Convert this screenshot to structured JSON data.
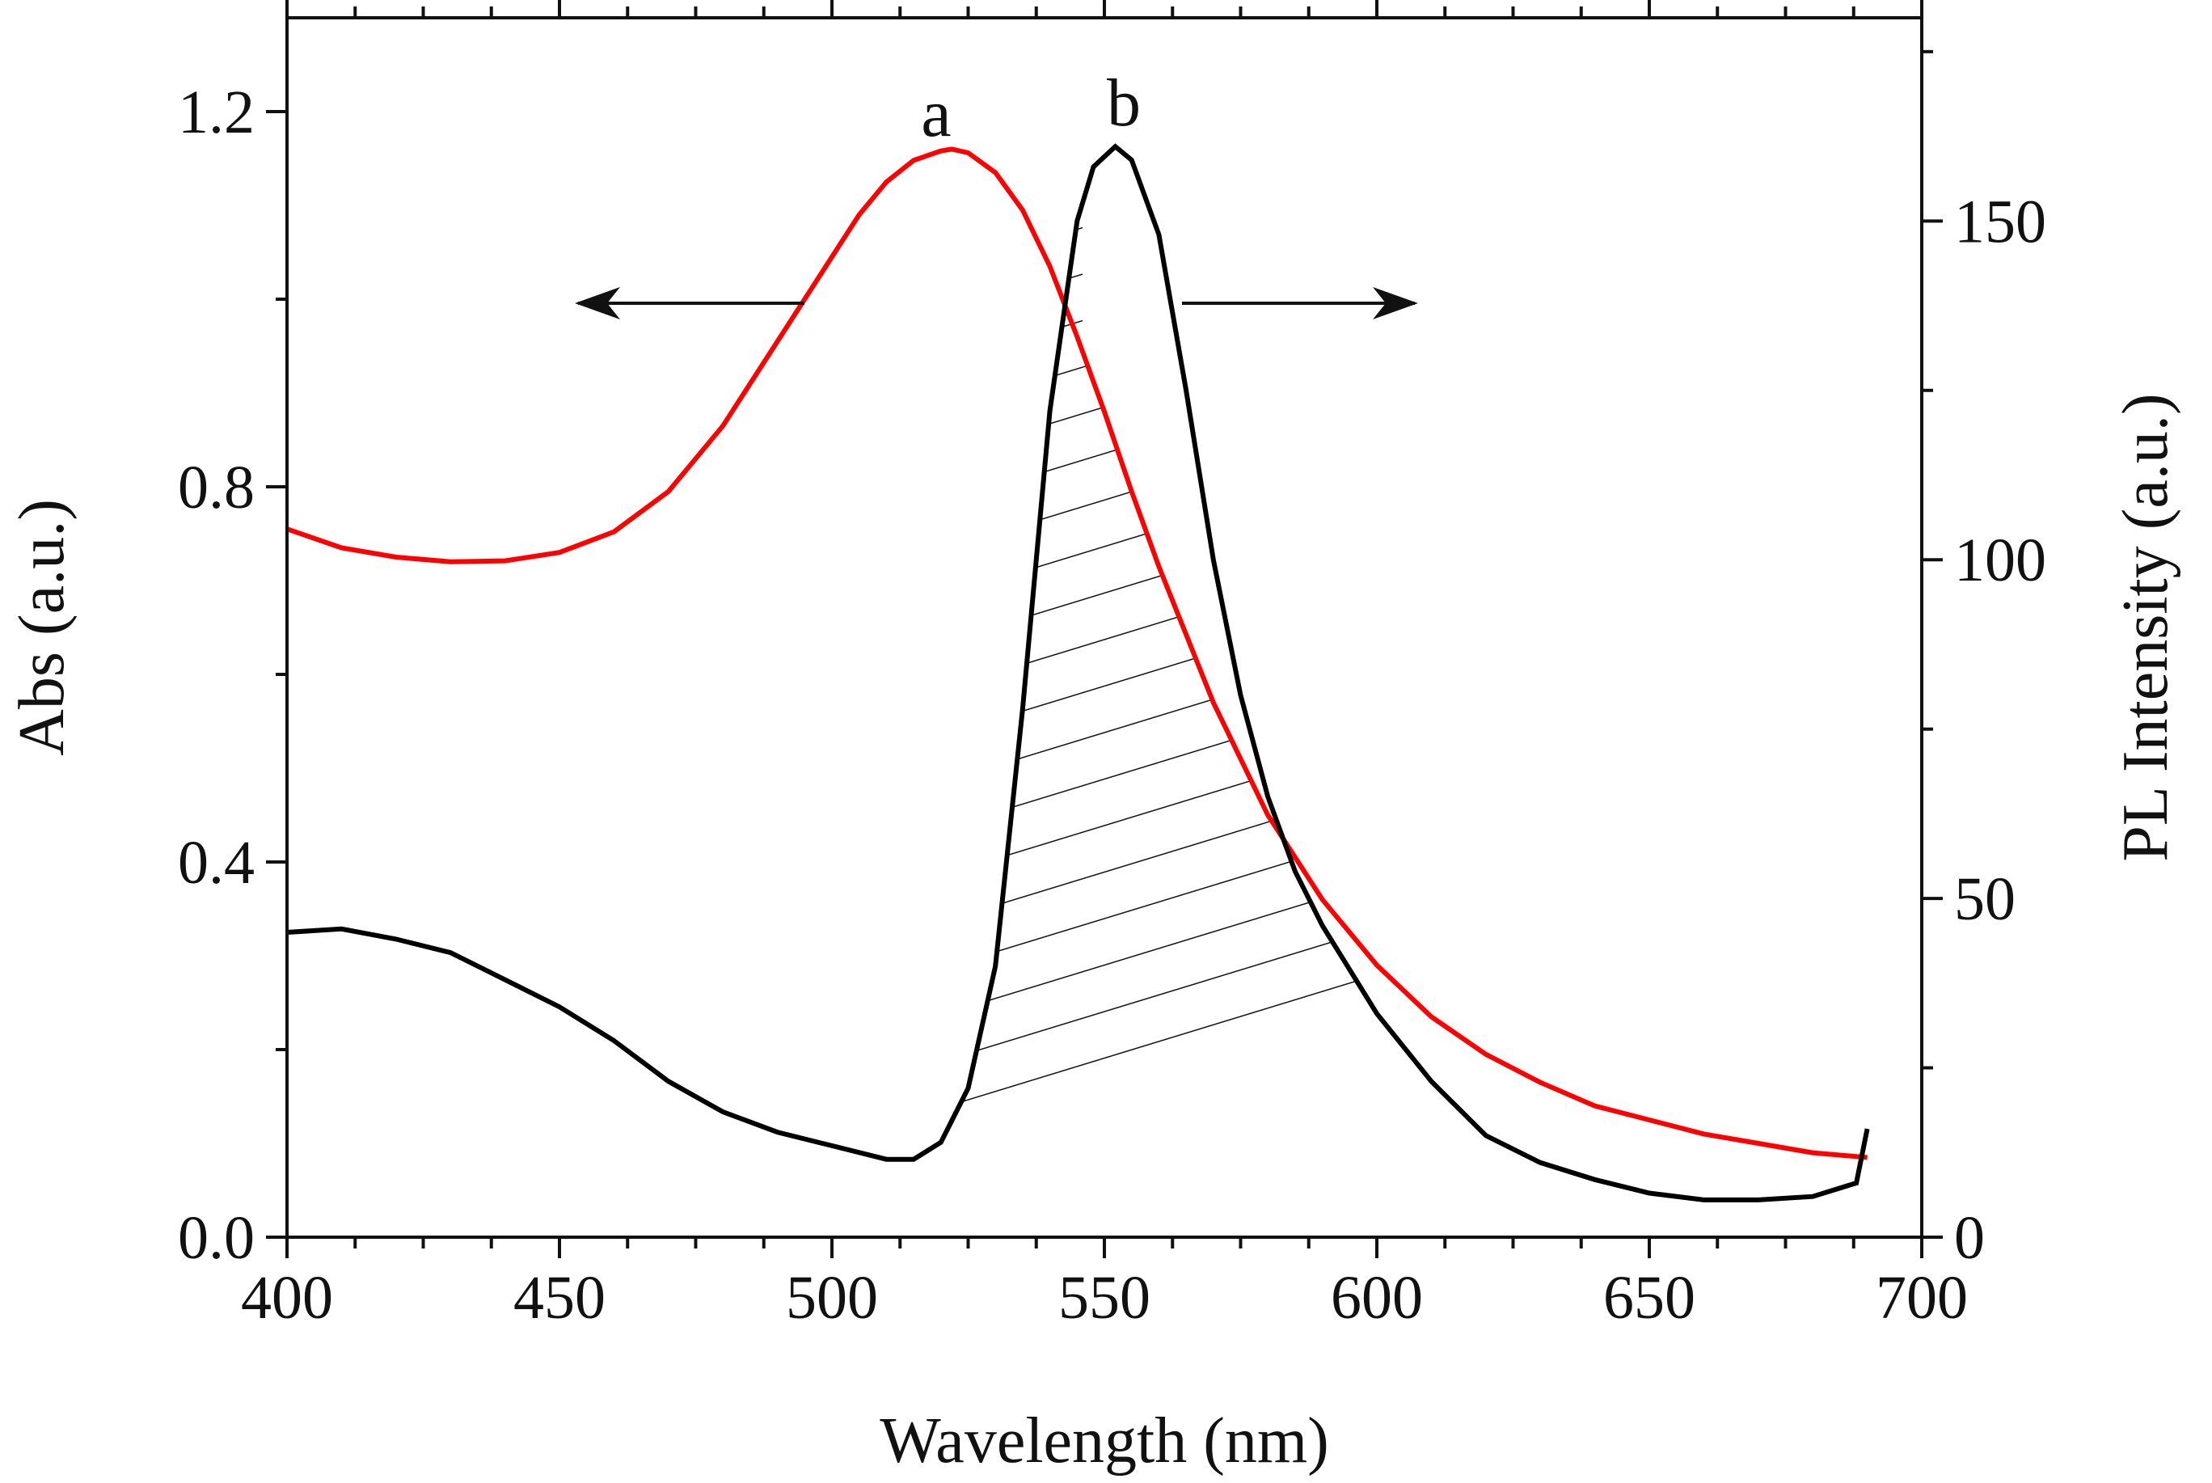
{
  "chart_data": {
    "type": "line",
    "xlabel": "Wavelength (nm)",
    "ylabel_left": "Abs (a.u.)",
    "ylabel_right": "PL Intensity (a.u.)",
    "xlim": [
      400,
      700
    ],
    "ylim_left": [
      0.0,
      1.3
    ],
    "ylim_right": [
      0,
      180
    ],
    "x_ticks": [
      "400",
      "450",
      "500",
      "550",
      "600",
      "650",
      "700"
    ],
    "y_left_ticks": [
      "0.0",
      "0.4",
      "0.8",
      "1.2"
    ],
    "y_right_ticks": [
      "0",
      "50",
      "100",
      "150"
    ],
    "grid": false,
    "legend": "none",
    "annotations": {
      "curve_a_label": "a",
      "curve_b_label": "b"
    },
    "overlap_region": "hatched",
    "series": [
      {
        "label": "a",
        "axis": "left",
        "color": "#ff0000",
        "x": [
          400,
          410,
          420,
          430,
          440,
          450,
          460,
          470,
          480,
          490,
          500,
          505,
          510,
          515,
          520,
          522,
          525,
          530,
          535,
          540,
          545,
          550,
          555,
          560,
          570,
          580,
          590,
          600,
          610,
          620,
          630,
          640,
          650,
          660,
          670,
          680,
          690
        ],
        "y": [
          0.755,
          0.735,
          0.725,
          0.72,
          0.721,
          0.73,
          0.752,
          0.795,
          0.865,
          0.955,
          1.045,
          1.09,
          1.125,
          1.148,
          1.158,
          1.16,
          1.156,
          1.135,
          1.095,
          1.035,
          0.96,
          0.88,
          0.795,
          0.715,
          0.57,
          0.45,
          0.36,
          0.29,
          0.235,
          0.195,
          0.165,
          0.14,
          0.125,
          0.11,
          0.1,
          0.09,
          0.085
        ]
      },
      {
        "label": "b",
        "axis": "right",
        "color": "#000000",
        "x": [
          400,
          410,
          420,
          430,
          440,
          450,
          460,
          470,
          480,
          490,
          500,
          510,
          515,
          520,
          525,
          530,
          535,
          540,
          545,
          548,
          552,
          555,
          560,
          565,
          570,
          575,
          580,
          585,
          590,
          600,
          610,
          620,
          630,
          640,
          650,
          660,
          670,
          680,
          688,
          690
        ],
        "y": [
          45,
          45.5,
          44,
          42,
          38,
          34,
          29,
          23,
          18.5,
          15.5,
          13.5,
          11.5,
          11.5,
          14,
          22,
          40,
          78,
          122,
          150,
          158,
          161,
          159,
          148,
          125,
          100,
          80,
          65,
          54,
          46,
          33,
          23,
          15,
          11,
          8.5,
          6.5,
          5.5,
          5.5,
          6,
          8,
          16
        ]
      }
    ]
  }
}
